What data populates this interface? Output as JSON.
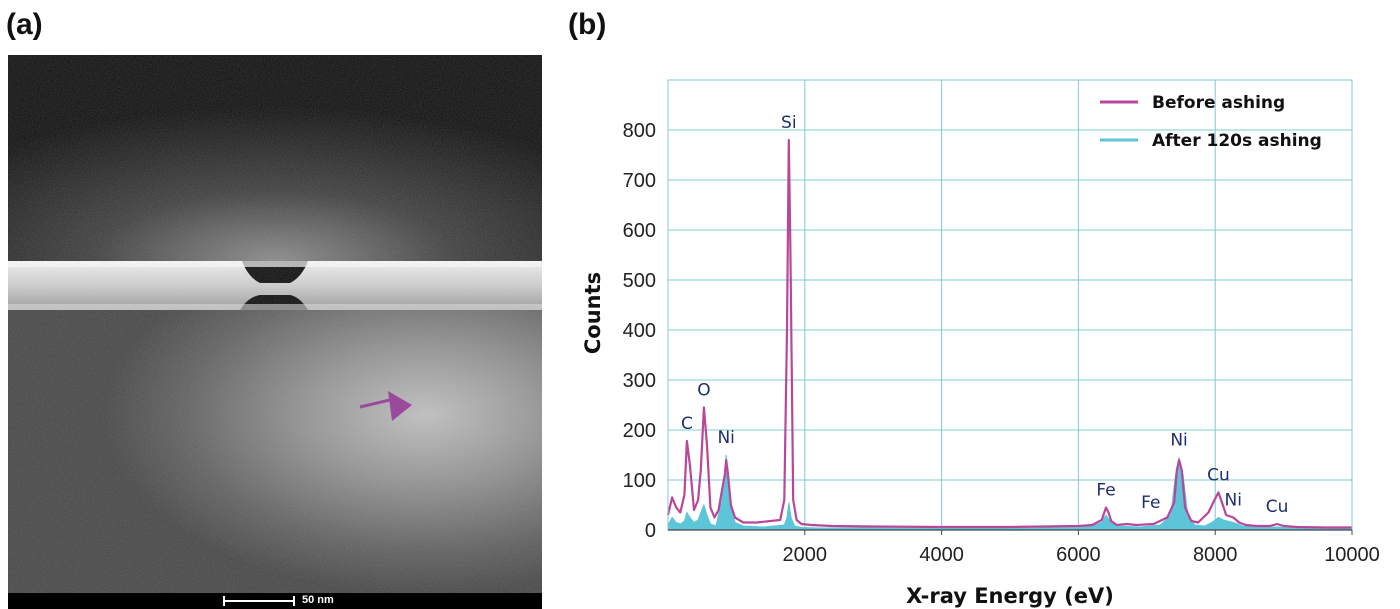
{
  "panels": {
    "a_label": "(a)",
    "b_label": "(b)"
  },
  "micrograph": {
    "scale_bar_text": "50 nm"
  },
  "colors": {
    "before": "#b8479a",
    "after": "#5cc6d8",
    "grid": "#7fc8d6",
    "peak_label": "#1d2f6e",
    "arrow": "#9a4a9c"
  },
  "chart_data": {
    "type": "line",
    "title": "",
    "xlabel": "X-ray Energy (eV)",
    "ylabel": "Counts",
    "xlim": [
      0,
      10000
    ],
    "ylim": [
      0,
      900
    ],
    "xticks": [
      2000,
      4000,
      6000,
      8000,
      10000
    ],
    "yticks": [
      0,
      100,
      200,
      300,
      400,
      500,
      600,
      700,
      800
    ],
    "grid": true,
    "legend_position": "top-right",
    "series": [
      {
        "name": "Before ashing",
        "style": "line",
        "x": [
          0,
          60,
          120,
          180,
          240,
          277,
          320,
          380,
          440,
          480,
          525,
          570,
          620,
          680,
          740,
          790,
          830,
          851,
          875,
          920,
          980,
          1100,
          1300,
          1500,
          1640,
          1700,
          1740,
          1766,
          1790,
          1830,
          1880,
          1950,
          2100,
          2400,
          3000,
          4000,
          5000,
          6000,
          6200,
          6340,
          6404,
          6440,
          6480,
          6560,
          6705,
          6850,
          7100,
          7300,
          7400,
          7440,
          7472,
          7510,
          7560,
          7650,
          7750,
          7900,
          7990,
          8047,
          8100,
          8160,
          8264,
          8350,
          8450,
          8600,
          8800,
          8905,
          9000,
          9200,
          9600,
          10000
        ],
        "y": [
          30,
          65,
          45,
          35,
          70,
          178,
          130,
          40,
          60,
          120,
          245,
          170,
          45,
          25,
          40,
          80,
          110,
          140,
          115,
          50,
          25,
          15,
          15,
          18,
          20,
          60,
          400,
          780,
          560,
          60,
          20,
          12,
          10,
          8,
          7,
          6,
          6,
          8,
          10,
          20,
          45,
          35,
          18,
          10,
          12,
          10,
          12,
          25,
          55,
          120,
          140,
          120,
          45,
          18,
          15,
          35,
          60,
          75,
          55,
          30,
          25,
          15,
          10,
          8,
          8,
          12,
          8,
          6,
          5,
          5
        ]
      },
      {
        "name": "After 120s ashing",
        "style": "filled",
        "x": [
          0,
          60,
          120,
          180,
          240,
          277,
          320,
          380,
          440,
          480,
          525,
          570,
          620,
          700,
          790,
          851,
          900,
          980,
          1100,
          1400,
          1700,
          1740,
          1766,
          1800,
          1850,
          1950,
          2200,
          3000,
          4000,
          5000,
          6000,
          6200,
          6340,
          6404,
          6450,
          6550,
          6900,
          7200,
          7350,
          7420,
          7472,
          7530,
          7600,
          7700,
          7850,
          7950,
          8047,
          8120,
          8264,
          8400,
          8600,
          8905,
          9100,
          9500,
          10000
        ],
        "y": [
          10,
          25,
          15,
          12,
          18,
          35,
          25,
          15,
          20,
          35,
          50,
          30,
          12,
          8,
          60,
          150,
          60,
          15,
          8,
          6,
          10,
          25,
          55,
          25,
          8,
          5,
          4,
          4,
          3,
          3,
          5,
          8,
          15,
          30,
          20,
          8,
          6,
          10,
          30,
          110,
          145,
          110,
          30,
          10,
          8,
          15,
          25,
          20,
          15,
          8,
          5,
          6,
          4,
          3,
          3
        ]
      }
    ],
    "annotations": [
      {
        "text": "C",
        "x": 277,
        "y": 178
      },
      {
        "text": "O",
        "x": 525,
        "y": 245
      },
      {
        "text": "Ni",
        "x": 851,
        "y": 150
      },
      {
        "text": "Si",
        "x": 1766,
        "y": 780
      },
      {
        "text": "Fe",
        "x": 6404,
        "y": 45
      },
      {
        "text": "Fe",
        "x": 7058,
        "y": 20
      },
      {
        "text": "Ni",
        "x": 7472,
        "y": 145
      },
      {
        "text": "Cu",
        "x": 8047,
        "y": 75
      },
      {
        "text": "Ni",
        "x": 8264,
        "y": 25
      },
      {
        "text": "Cu",
        "x": 8905,
        "y": 12
      }
    ]
  }
}
